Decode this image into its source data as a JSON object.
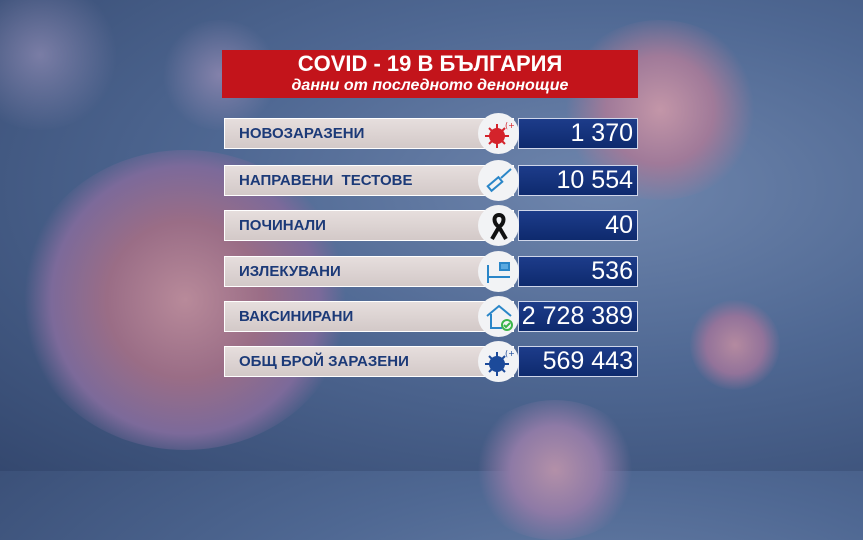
{
  "header": {
    "title": "COVID - 19 В БЪЛГАРИЯ",
    "subtitle": "данни от последното денонощие"
  },
  "colors": {
    "header_red": "#c3141b",
    "value_blue": "#0e2a6e",
    "label_text": "#1c3a78"
  },
  "rows": [
    {
      "label": "НОВОЗАРАЗЕНИ",
      "value": "1 370",
      "icon": "virus-plus-icon"
    },
    {
      "label": "НАПРАВЕНИ  ТЕСТОВЕ",
      "value": "10 554",
      "icon": "test-swab-icon"
    },
    {
      "label": "ПОЧИНАЛИ",
      "value": "40",
      "icon": "mourning-ribbon-icon"
    },
    {
      "label": "ИЗЛЕКУВАНИ",
      "value": "536",
      "icon": "bed-icon"
    },
    {
      "label": "ВАКСИНИРАНИ",
      "value": "2 728 389",
      "icon": "home-check-icon"
    },
    {
      "label": "ОБЩ БРОЙ ЗАРАЗЕНИ",
      "value": "569 443",
      "icon": "virus-plus-icon"
    }
  ]
}
